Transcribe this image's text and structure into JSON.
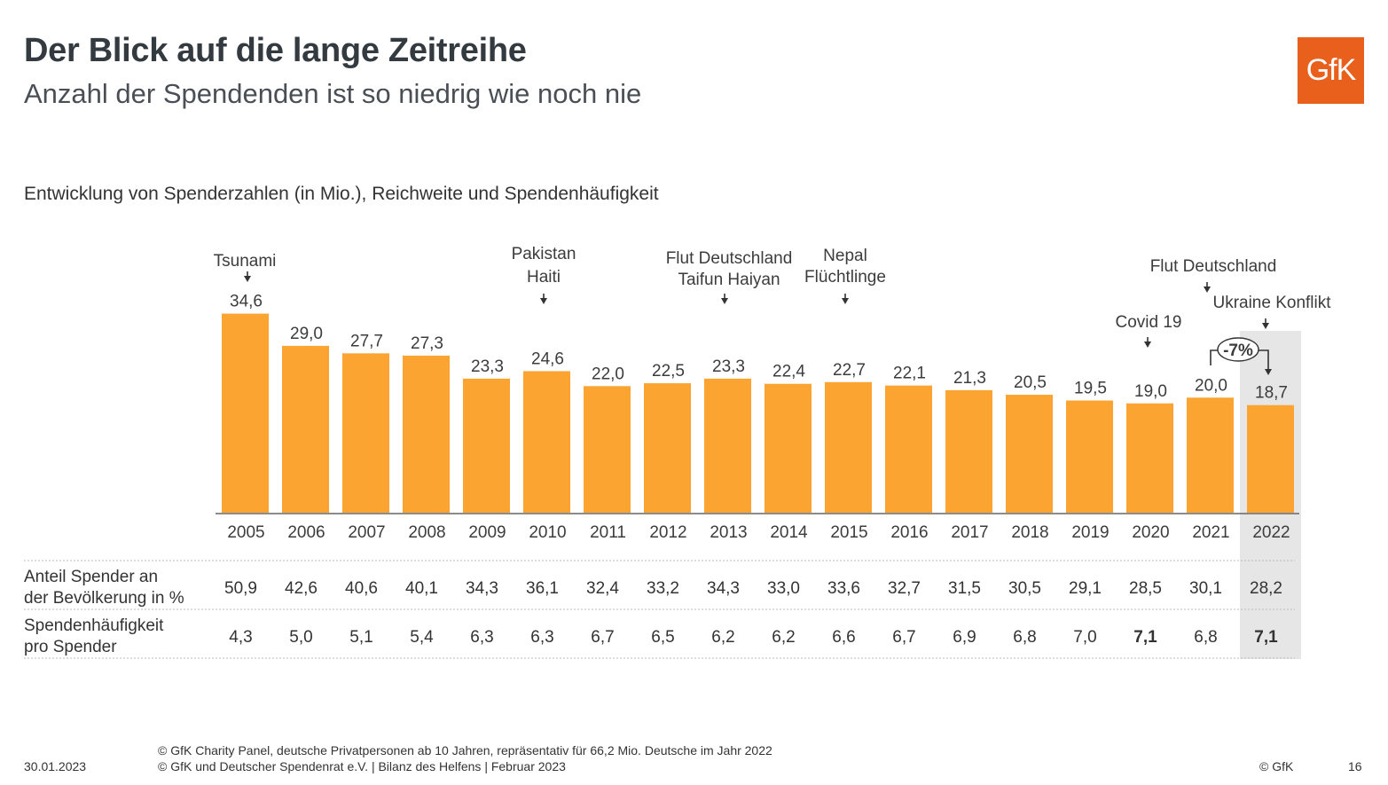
{
  "header": {
    "title": "Der Blick auf die lange Zeitreihe",
    "subtitle": "Anzahl der Spendenden ist so niedrig wie noch nie",
    "logo_text": "GfK"
  },
  "chart_data": {
    "type": "bar",
    "title": "Entwicklung von Spenderzahlen (in Mio.), Reichweite und Spendenhäufigkeit",
    "categories": [
      "2005",
      "2006",
      "2007",
      "2008",
      "2009",
      "2010",
      "2011",
      "2012",
      "2013",
      "2014",
      "2015",
      "2016",
      "2017",
      "2018",
      "2019",
      "2020",
      "2021",
      "2022"
    ],
    "values": [
      34.6,
      29.0,
      27.7,
      27.3,
      23.3,
      24.6,
      22.0,
      22.5,
      23.3,
      22.4,
      22.7,
      22.1,
      21.3,
      20.5,
      19.5,
      19.0,
      20.0,
      18.7
    ],
    "value_labels": [
      "34,6",
      "29,0",
      "27,7",
      "27,3",
      "23,3",
      "24,6",
      "22,0",
      "22,5",
      "23,3",
      "22,4",
      "22,7",
      "22,1",
      "21,3",
      "20,5",
      "19,5",
      "19,0",
      "20,0",
      "18,7"
    ],
    "ylim": [
      0,
      35
    ],
    "bar_color": "#fba431",
    "highlight_color": "#e6e6e6",
    "highlight_category": "2022",
    "events": [
      {
        "category": "2005",
        "lines": [
          "Tsunami"
        ]
      },
      {
        "category": "2010",
        "lines": [
          "Pakistan",
          "Haiti"
        ]
      },
      {
        "category": "2013",
        "lines": [
          "Flut Deutschland",
          "Taifun Haiyan"
        ]
      },
      {
        "category": "2015",
        "lines": [
          "Nepal",
          "Flüchtlinge"
        ]
      },
      {
        "category": "2020",
        "lines": [
          "Covid 19"
        ]
      },
      {
        "category": "2021",
        "lines": [
          "Flut Deutschland"
        ]
      },
      {
        "category": "2022",
        "lines": [
          "Ukraine Konflikt"
        ]
      }
    ],
    "change_label": "-7%",
    "table": {
      "rows": [
        {
          "label": [
            "Anteil Spender an",
            "der Bevölkerung in %"
          ],
          "values": [
            "50,9",
            "42,6",
            "40,6",
            "40,1",
            "34,3",
            "36,1",
            "32,4",
            "33,2",
            "34,3",
            "33,0",
            "33,6",
            "32,7",
            "31,5",
            "30,5",
            "29,1",
            "28,5",
            "30,1",
            "28,2"
          ],
          "bold": []
        },
        {
          "label": [
            "Spendenhäufigkeit",
            "pro Spender"
          ],
          "values": [
            "4,3",
            "5,0",
            "5,1",
            "5,4",
            "6,3",
            "6,3",
            "6,7",
            "6,5",
            "6,2",
            "6,2",
            "6,6",
            "6,7",
            "6,9",
            "6,8",
            "7,0",
            "7,1",
            "6,8",
            "7,1"
          ],
          "bold": [
            "2020",
            "2022"
          ]
        }
      ]
    }
  },
  "footer": {
    "date": "30.01.2023",
    "source_line1": "© GfK Charity Panel, deutsche Privatpersonen ab 10 Jahren, repräsentativ für 66,2 Mio. Deutsche im Jahr 2022",
    "source_line2": "© GfK und Deutscher Spendenrat e.V. | Bilanz des Helfens | Februar 2023",
    "copyright": "© GfK",
    "page_number": "16"
  }
}
